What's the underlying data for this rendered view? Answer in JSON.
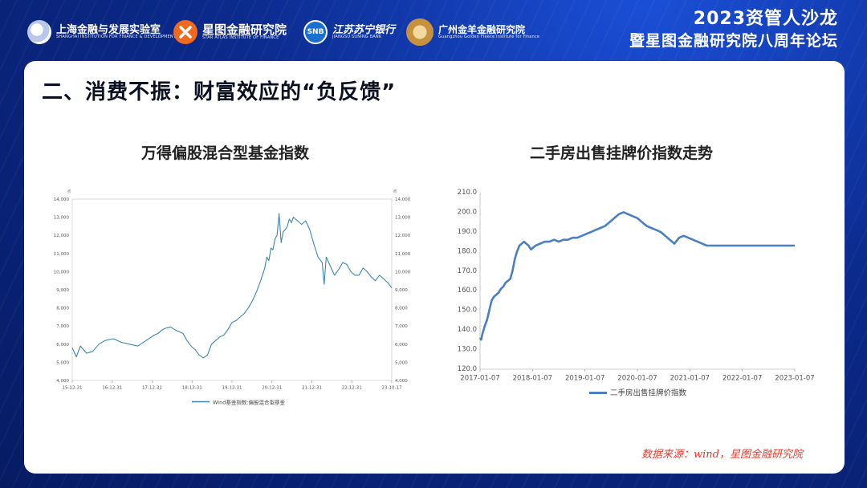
{
  "header": {
    "logos": [
      {
        "name": "sifd",
        "cn": "上海金融与发展实验室",
        "en": "SHANGHAI INSTITUTION FOR FINANCE & DEVELOPMENT"
      },
      {
        "name": "star-atlas",
        "cn": "星图金融研究院",
        "en": "STAR ATLAS INSTITUTE OF FINANCE"
      },
      {
        "name": "snb",
        "cn": "江苏苏宁银行",
        "en": "JIANGSU SUNING BANK"
      },
      {
        "name": "golden-fleece",
        "cn": "广州金羊金融研究院",
        "en": "Guangzhou Golden Fleece Institute for Finance"
      }
    ],
    "snb_badge": "SNB",
    "event_line1": "2023资管人沙龙",
    "event_line2": "暨星图金融研究院八周年论坛"
  },
  "slide": {
    "title": "二、消费不振：财富效应的“负反馈”",
    "source": "数据来源：wind，星图金融研究院"
  },
  "chart_data": [
    {
      "type": "line",
      "title": "万得偏股混合型基金指数",
      "unit_left": "点",
      "unit_right": "点",
      "legend": "Wind基金指数:偏股混合型基金",
      "legend_position": "bottom",
      "x_ticks": [
        "15-12-31",
        "16-12-31",
        "17-12-31",
        "18-12-31",
        "19-12-31",
        "20-12-31",
        "21-12-31",
        "22-12-31",
        "23-10-17"
      ],
      "y_ticks": [
        "4,000",
        "5,000",
        "6,000",
        "7,000",
        "8,000",
        "9,000",
        "10,000",
        "11,000",
        "12,000",
        "13,000",
        "14,000"
      ],
      "ylim": [
        4000,
        14000
      ],
      "grid": false,
      "color": "#3a86b0",
      "series": [
        {
          "name": "Wind基金指数:偏股混合型基金",
          "x": [
            0,
            0.1,
            0.2,
            0.35,
            0.5,
            0.65,
            0.8,
            1.0,
            1.2,
            1.4,
            1.6,
            1.8,
            2.0,
            2.1,
            2.2,
            2.3,
            2.4,
            2.5,
            2.6,
            2.7,
            2.8,
            2.9,
            3.0,
            3.1,
            3.2,
            3.3,
            3.4,
            3.5,
            3.6,
            3.7,
            3.8,
            3.9,
            4.0,
            4.1,
            4.2,
            4.3,
            4.4,
            4.5,
            4.6,
            4.7,
            4.75,
            4.8,
            4.85,
            4.9,
            4.95,
            5.0,
            5.05,
            5.1,
            5.15,
            5.2,
            5.25,
            5.3,
            5.35,
            5.4,
            5.5,
            5.6,
            5.7,
            5.8,
            5.9,
            6.0,
            6.1,
            6.15,
            6.2,
            6.3,
            6.4,
            6.5,
            6.6,
            6.7,
            6.8,
            6.9,
            7.0,
            7.1,
            7.2,
            7.3,
            7.4,
            7.5,
            7.6,
            7.7,
            7.8
          ],
          "values": [
            5800,
            5300,
            5900,
            5500,
            5600,
            6000,
            6200,
            6300,
            6100,
            6000,
            5900,
            6200,
            6500,
            6600,
            6800,
            6900,
            6950,
            6800,
            6700,
            6600,
            6200,
            5900,
            5700,
            5400,
            5250,
            5400,
            6000,
            6200,
            6400,
            6500,
            6800,
            7200,
            7300,
            7500,
            7700,
            8000,
            8400,
            8900,
            9500,
            10200,
            10800,
            10600,
            11300,
            11200,
            11800,
            12000,
            13200,
            11600,
            12200,
            12300,
            12500,
            12900,
            12700,
            13000,
            12800,
            12600,
            12800,
            12300,
            11500,
            10800,
            10500,
            9300,
            10800,
            10300,
            9800,
            10100,
            10500,
            10400,
            10000,
            9800,
            9800,
            10200,
            10000,
            9700,
            9500,
            9800,
            9600,
            9400,
            9100
          ]
        }
      ]
    },
    {
      "type": "line",
      "title": "二手房出售挂牌价指数走势",
      "legend": "二手房出售挂牌价指数",
      "legend_position": "bottom",
      "x_ticks": [
        "2017-01-07",
        "2018-01-07",
        "2019-01-07",
        "2020-01-07",
        "2021-01-07",
        "2022-01-07",
        "2023-01-07"
      ],
      "y_ticks": [
        "120.0",
        "130.0",
        "140.0",
        "150.0",
        "160.0",
        "170.0",
        "180.0",
        "190.0",
        "200.0",
        "210.0"
      ],
      "ylim": [
        120,
        210
      ],
      "grid": false,
      "color": "#4a7fc1",
      "series": [
        {
          "name": "二手房出售挂牌价指数",
          "x": [
            0,
            0.05,
            0.1,
            0.2,
            0.3,
            0.4,
            0.5,
            0.6,
            0.7,
            0.8,
            0.9,
            1.0,
            1.1,
            1.2,
            1.3,
            1.4,
            1.5,
            1.6,
            1.7,
            1.8,
            1.9,
            2.0,
            2.1,
            2.2,
            2.3,
            2.4,
            2.6,
            2.8,
            3.0,
            3.2,
            3.4,
            3.6,
            3.8,
            4.0,
            4.2,
            4.4,
            4.6,
            4.8,
            5.0,
            5.2,
            5.4,
            5.6,
            5.8,
            6.0,
            6.2,
            6.4,
            6.6,
            6.8,
            7.0,
            7.1,
            7.2,
            7.4,
            7.6,
            7.8,
            8.0,
            8.2,
            8.4,
            8.6,
            8.8,
            9.0,
            9.2,
            9.4,
            9.6,
            9.8,
            10.0,
            10.2,
            10.4,
            10.6,
            10.8,
            11.0,
            11.2,
            11.4,
            11.6,
            11.8,
            12.0,
            12.2,
            12.4,
            12.6,
            12.8,
            13.0,
            13.2,
            13.4,
            13.6
          ],
          "values": [
            136,
            135,
            138,
            142,
            145,
            150,
            155,
            157,
            158,
            159,
            161,
            162,
            164,
            165,
            166,
            170,
            176,
            180,
            183,
            184,
            185,
            184,
            183,
            181,
            182,
            183,
            184,
            185,
            185,
            186,
            185,
            186,
            186,
            187,
            187,
            188,
            189,
            190,
            191,
            192,
            193,
            195,
            197,
            199,
            200,
            199,
            198,
            197,
            195,
            194,
            193,
            192,
            191,
            190,
            188,
            186,
            184,
            187,
            188,
            187,
            186,
            185,
            184,
            183,
            183,
            183,
            183,
            183,
            183,
            183,
            183,
            183,
            183,
            183,
            183,
            183,
            183,
            183,
            183,
            183,
            183,
            183,
            183
          ]
        }
      ]
    }
  ]
}
